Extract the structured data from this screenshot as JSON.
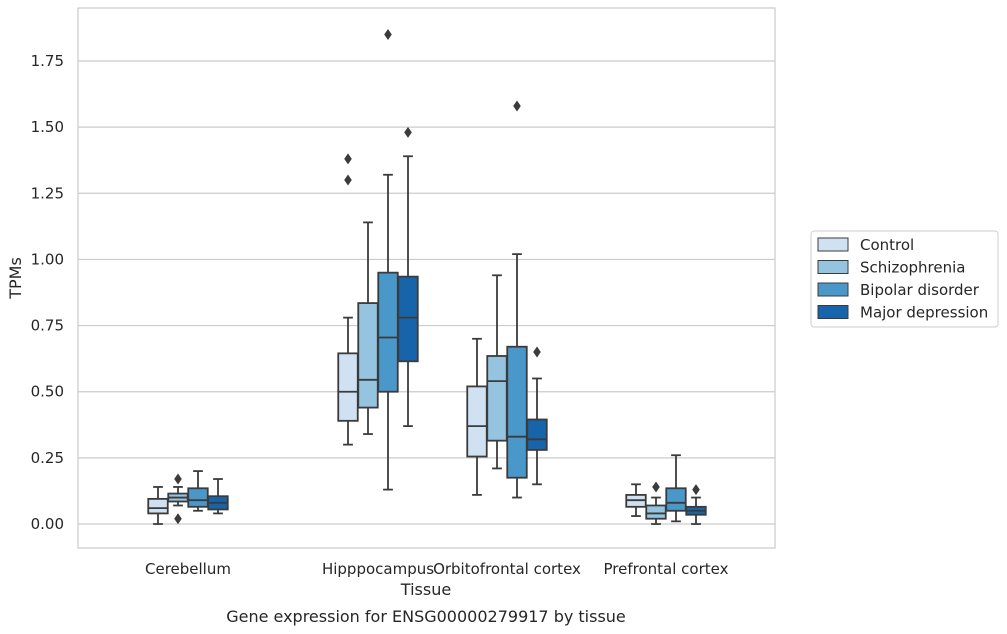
{
  "chart_data": {
    "type": "boxplot",
    "caption": "Gene expression for ENSG00000279917 by tissue",
    "xlabel": "Tissue",
    "ylabel": "TPMs",
    "ylim": [
      -0.09,
      1.95
    ],
    "yticks": [
      0.0,
      0.25,
      0.5,
      0.75,
      1.0,
      1.25,
      1.5,
      1.75
    ],
    "ytick_labels": [
      "0.00",
      "0.25",
      "0.50",
      "0.75",
      "1.00",
      "1.25",
      "1.50",
      "1.75"
    ],
    "grid": "horizontal",
    "legend_position": "outside-right",
    "categories": [
      "Cerebellum",
      "Hipppocampus",
      "Orbitofrontal cortex",
      "Prefrontal cortex"
    ],
    "series": [
      {
        "name": "Control",
        "color": "#d0e1f2",
        "boxes": [
          {
            "whislo": 0.0,
            "q1": 0.04,
            "med": 0.06,
            "q3": 0.095,
            "whishi": 0.14,
            "fliers": []
          },
          {
            "whislo": 0.3,
            "q1": 0.39,
            "med": 0.5,
            "q3": 0.645,
            "whishi": 0.78,
            "fliers": [
              1.3,
              1.38
            ]
          },
          {
            "whislo": 0.11,
            "q1": 0.255,
            "med": 0.37,
            "q3": 0.52,
            "whishi": 0.7,
            "fliers": []
          },
          {
            "whislo": 0.03,
            "q1": 0.065,
            "med": 0.09,
            "q3": 0.11,
            "whishi": 0.15,
            "fliers": []
          }
        ]
      },
      {
        "name": "Schizophrenia",
        "color": "#94c4df",
        "boxes": [
          {
            "whislo": 0.07,
            "q1": 0.085,
            "med": 0.1,
            "q3": 0.115,
            "whishi": 0.14,
            "fliers": [
              0.02,
              0.17
            ]
          },
          {
            "whislo": 0.34,
            "q1": 0.44,
            "med": 0.545,
            "q3": 0.835,
            "whishi": 1.14,
            "fliers": []
          },
          {
            "whislo": 0.21,
            "q1": 0.315,
            "med": 0.54,
            "q3": 0.635,
            "whishi": 0.94,
            "fliers": []
          },
          {
            "whislo": 0.0,
            "q1": 0.02,
            "med": 0.04,
            "q3": 0.07,
            "whishi": 0.1,
            "fliers": [
              0.14
            ]
          }
        ]
      },
      {
        "name": "Bipolar disorder",
        "color": "#4a98c9",
        "boxes": [
          {
            "whislo": 0.05,
            "q1": 0.065,
            "med": 0.09,
            "q3": 0.135,
            "whishi": 0.2,
            "fliers": []
          },
          {
            "whislo": 0.13,
            "q1": 0.5,
            "med": 0.705,
            "q3": 0.95,
            "whishi": 1.32,
            "fliers": [
              1.85
            ]
          },
          {
            "whislo": 0.1,
            "q1": 0.175,
            "med": 0.33,
            "q3": 0.67,
            "whishi": 1.02,
            "fliers": [
              1.58
            ]
          },
          {
            "whislo": 0.01,
            "q1": 0.05,
            "med": 0.08,
            "q3": 0.135,
            "whishi": 0.26,
            "fliers": []
          }
        ]
      },
      {
        "name": "Major depression",
        "color": "#1764ab",
        "boxes": [
          {
            "whislo": 0.04,
            "q1": 0.055,
            "med": 0.08,
            "q3": 0.105,
            "whishi": 0.17,
            "fliers": []
          },
          {
            "whislo": 0.37,
            "q1": 0.615,
            "med": 0.78,
            "q3": 0.935,
            "whishi": 1.39,
            "fliers": [
              1.48
            ]
          },
          {
            "whislo": 0.15,
            "q1": 0.28,
            "med": 0.32,
            "q3": 0.395,
            "whishi": 0.55,
            "fliers": [
              0.65
            ]
          },
          {
            "whislo": 0.0,
            "q1": 0.035,
            "med": 0.05,
            "q3": 0.065,
            "whishi": 0.1,
            "fliers": [
              0.13
            ]
          }
        ]
      }
    ]
  }
}
